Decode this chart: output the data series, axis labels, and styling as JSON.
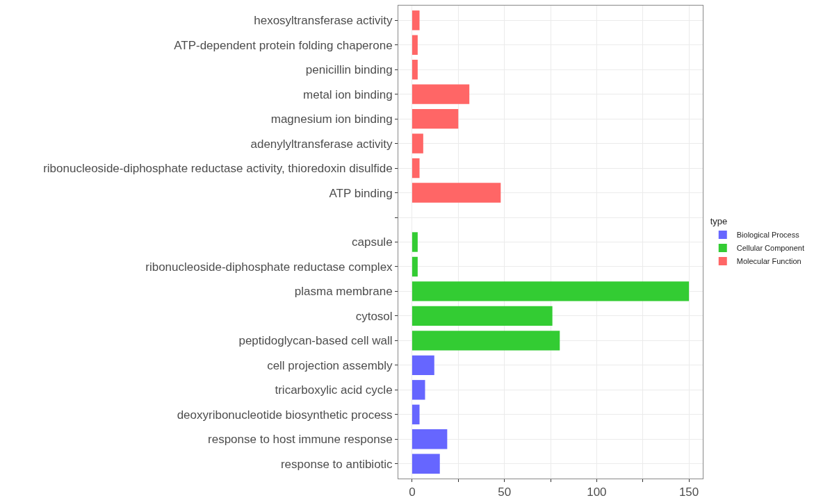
{
  "chart_data": {
    "type": "bar",
    "orientation": "horizontal",
    "legend_title": "type",
    "legend": "right",
    "grid": true,
    "categories": [
      "hexosyltransferase activity",
      "ATP-dependent protein folding chaperone",
      "penicillin binding",
      "metal ion binding",
      "magnesium ion binding",
      "adenylyltransferase activity",
      "ribonucleoside-diphosphate reductase activity, thioredoxin disulfide",
      "ATP binding",
      null,
      "capsule",
      "ribonucleoside-diphosphate reductase complex",
      "plasma membrane",
      "cytosol",
      "peptidoglycan-based cell wall",
      "cell projection assembly",
      "tricarboxylic acid cycle",
      "deoxyribonucleotide biosynthetic process",
      "response to host immune response",
      "response to antibiotic"
    ],
    "series": [
      {
        "name": "Biological Process",
        "color": "#6666ff",
        "values": [
          null,
          null,
          null,
          null,
          null,
          null,
          null,
          null,
          null,
          null,
          null,
          null,
          null,
          null,
          12,
          7,
          4,
          19,
          15
        ]
      },
      {
        "name": "Cellular Component",
        "color": "#33cc33",
        "values": [
          null,
          null,
          null,
          null,
          null,
          null,
          null,
          null,
          null,
          3,
          3,
          150,
          76,
          80,
          null,
          null,
          null,
          null,
          null
        ]
      },
      {
        "name": "Molecular Function",
        "color": "#ff6666",
        "values": [
          4,
          3,
          3,
          31,
          25,
          6,
          4,
          48,
          null,
          null,
          null,
          null,
          null,
          null,
          null,
          null,
          null,
          null,
          null
        ]
      }
    ],
    "xlim": [
      -7.5,
      157.5
    ],
    "xticks": [
      0,
      {
        "value": 25,
        "label": null
      },
      50,
      {
        "value": 75,
        "label": null
      },
      100,
      {
        "value": 125,
        "label": null
      },
      150
    ]
  }
}
